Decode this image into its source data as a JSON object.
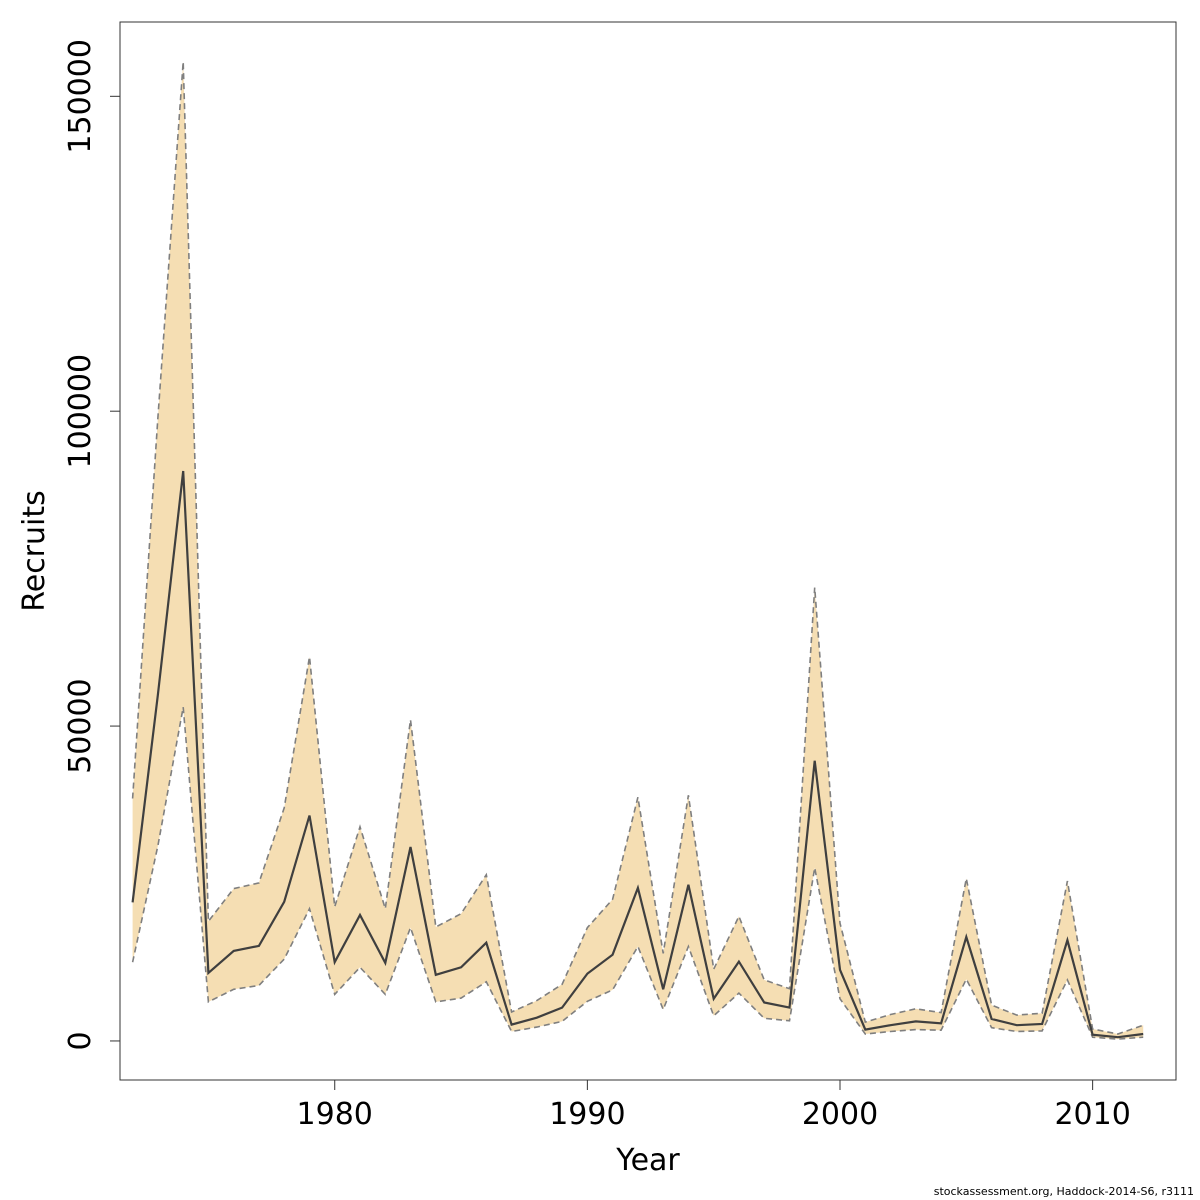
{
  "chart_data": {
    "type": "area",
    "xlabel": "Year",
    "ylabel": "Recruits",
    "xlim": [
      1971.5,
      2013.3
    ],
    "ylim": [
      -6200,
      161800
    ],
    "x_ticks": [
      1980,
      1990,
      2000,
      2010
    ],
    "y_ticks": [
      0,
      50000,
      100000,
      150000
    ],
    "grid": false,
    "band_color": "#f5deb3",
    "band_edge_color": "#7f7f7f",
    "line_color": "#3f3f3f",
    "years": [
      1972,
      1973,
      1974,
      1975,
      1976,
      1977,
      1978,
      1979,
      1980,
      1981,
      1982,
      1983,
      1984,
      1985,
      1986,
      1987,
      1988,
      1989,
      1990,
      1991,
      1992,
      1993,
      1994,
      1995,
      1996,
      1997,
      1998,
      1999,
      2000,
      2001,
      2002,
      2003,
      2004,
      2005,
      2006,
      2007,
      2008,
      2009,
      2010,
      2011,
      2012
    ],
    "series": [
      {
        "values": [
          22000,
          55000,
          90500,
          10800,
          14300,
          15100,
          22100,
          35800,
          12500,
          20000,
          12400,
          30800,
          10500,
          11700,
          15600,
          2600,
          3700,
          5300,
          10700,
          13700,
          24300,
          8200,
          24800,
          6700,
          12600,
          6100,
          5300,
          44500,
          11300,
          1800,
          2500,
          3100,
          2800,
          16500,
          3500,
          2500,
          2700,
          16000,
          1000,
          600,
          1100
        ]
      },
      {
        "values": [
          12500,
          31000,
          53000,
          6200,
          8200,
          8800,
          13000,
          21000,
          7400,
          11700,
          7400,
          18000,
          6200,
          6800,
          9400,
          1500,
          2200,
          3100,
          6300,
          8100,
          15000,
          5000,
          15000,
          4000,
          7600,
          3600,
          3200,
          27500,
          6700,
          1100,
          1500,
          1800,
          1700,
          9800,
          2100,
          1500,
          1600,
          9700,
          600,
          300,
          600
        ]
      },
      {
        "values": [
          38500,
          99000,
          155500,
          19000,
          24200,
          25100,
          37000,
          61000,
          21300,
          34000,
          21000,
          51000,
          18100,
          20200,
          26400,
          4600,
          6400,
          9000,
          18000,
          22500,
          38700,
          13900,
          39000,
          11400,
          19800,
          9700,
          8300,
          72000,
          18700,
          3000,
          4200,
          5100,
          4500,
          25800,
          5700,
          4100,
          4400,
          25400,
          1900,
          1100,
          2500
        ]
      }
    ]
  },
  "footer": "stockassessment.org, Haddock-2014-S6, r3111"
}
